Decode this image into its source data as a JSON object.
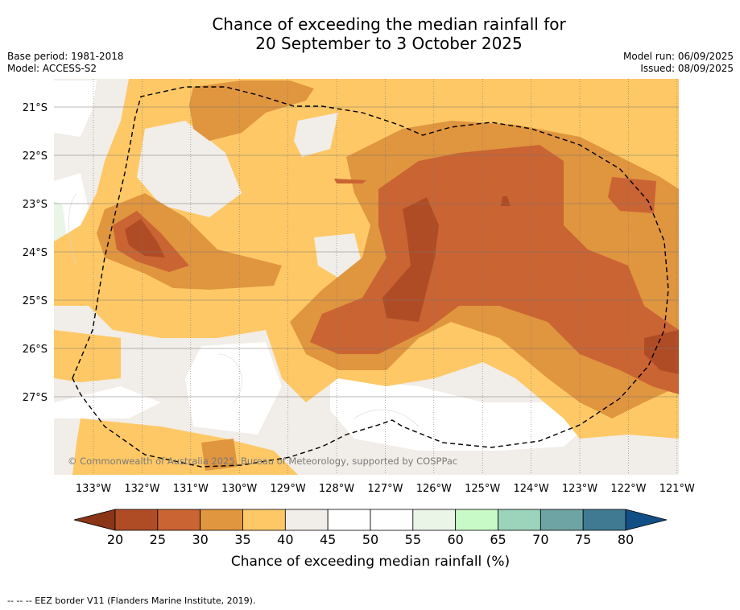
{
  "title_line1": "Chance of exceeding the median rainfall for",
  "title_line2": "20 September to 3 October 2025",
  "base_period": "Base period: 1981-2018",
  "model": "Model: ACCESS-S2",
  "model_run": "Model run: 06/09/2025",
  "issued": "Issued: 08/09/2025",
  "copyright": "© Commonwealth of Australia 2025, Bureau of Meteorology, supported by COSPPac",
  "footer_note": "-- -- -- EEZ border V11 (Flanders Marine Institute, 2019).",
  "lat_labels": [
    "21°S",
    "22°S",
    "23°S",
    "24°S",
    "25°S",
    "26°S",
    "27°S"
  ],
  "lon_labels": [
    "133°W",
    "132°W",
    "131°W",
    "130°W",
    "129°W",
    "128°W",
    "127°W",
    "126°W",
    "125°W",
    "124°W",
    "123°W",
    "122°W",
    "121°W"
  ],
  "colorbar": {
    "title": "Chance of exceeding median rainfall (%)",
    "ticks": [
      "20",
      "25",
      "30",
      "35",
      "40",
      "45",
      "50",
      "55",
      "60",
      "65",
      "70",
      "75",
      "80"
    ],
    "colors": [
      "#b04c25",
      "#ca6433",
      "#e0953f",
      "#fec866",
      "#f1ede8",
      "#ffffff",
      "#ffffff",
      "#eaf5e8",
      "#c8fac8",
      "#9bd3bb",
      "#6ea5a4",
      "#3f7a92"
    ],
    "under_color": "#8a3518",
    "over_color": "#124f86"
  },
  "map_colors": {
    "c20": "#b04c25",
    "c25": "#ca6433",
    "c30": "#e0953f",
    "c35": "#fec866",
    "c40": "#f1ede8",
    "c55": "#eaf5e8"
  }
}
